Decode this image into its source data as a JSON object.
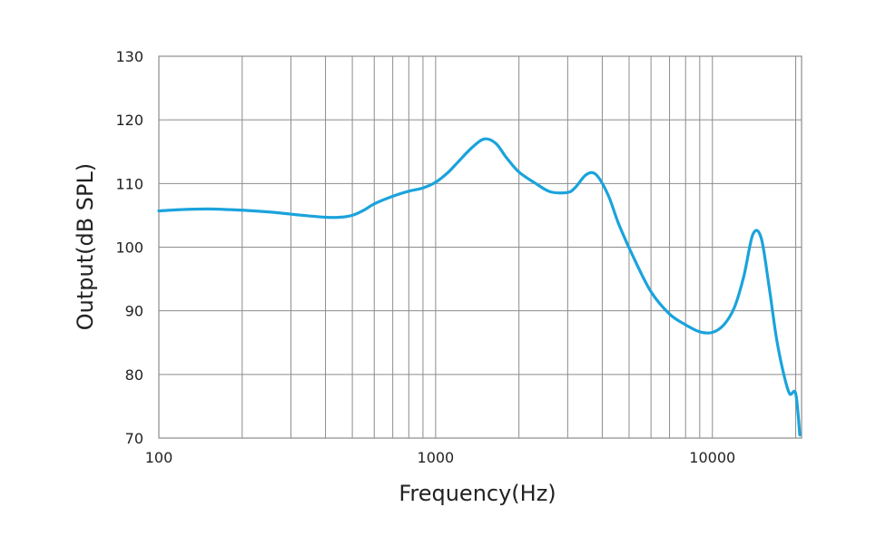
{
  "chart_data": {
    "type": "line",
    "title": "",
    "xlabel": "Frequency(Hz)",
    "ylabel": "Output(dB SPL)",
    "xscale": "log",
    "xlim": [
      100,
      21000
    ],
    "ylim": [
      70,
      130
    ],
    "grid": true,
    "colors": {
      "line": "#1aa3dc",
      "grid": "#8c8c8c",
      "frame": "#8c8c8c"
    },
    "x_ticks": [
      "100",
      "1000",
      "10000"
    ],
    "y_ticks": [
      "130",
      "120",
      "110",
      "100",
      "90",
      "80",
      "70"
    ],
    "series": [
      {
        "x": [
          100,
          120,
          150,
          180,
          220,
          270,
          330,
          400,
          450,
          500,
          550,
          600,
          700,
          800,
          900,
          1000,
          1100,
          1200,
          1350,
          1500,
          1650,
          1800,
          2000,
          2300,
          2600,
          3000,
          3200,
          3500,
          3800,
          4200,
          4600,
          5200,
          6000,
          7000,
          8000,
          9000,
          10000,
          11000,
          12000,
          13000,
          14000,
          15000,
          16000,
          17000,
          18000,
          19000,
          20000,
          20700
        ],
        "y": [
          105.7,
          105.9,
          106.0,
          105.9,
          105.7,
          105.4,
          105.0,
          104.7,
          104.7,
          105.0,
          105.8,
          106.8,
          108.0,
          108.8,
          109.3,
          110.2,
          111.6,
          113.3,
          115.6,
          117.0,
          116.3,
          114.1,
          111.8,
          110.0,
          108.7,
          108.6,
          109.4,
          111.4,
          111.4,
          108.2,
          103.5,
          98.3,
          93.0,
          89.5,
          87.8,
          86.7,
          86.6,
          87.8,
          90.5,
          95.5,
          102.0,
          101.5,
          94.0,
          86.0,
          80.5,
          77.0,
          77.0,
          70.5
        ]
      }
    ]
  }
}
